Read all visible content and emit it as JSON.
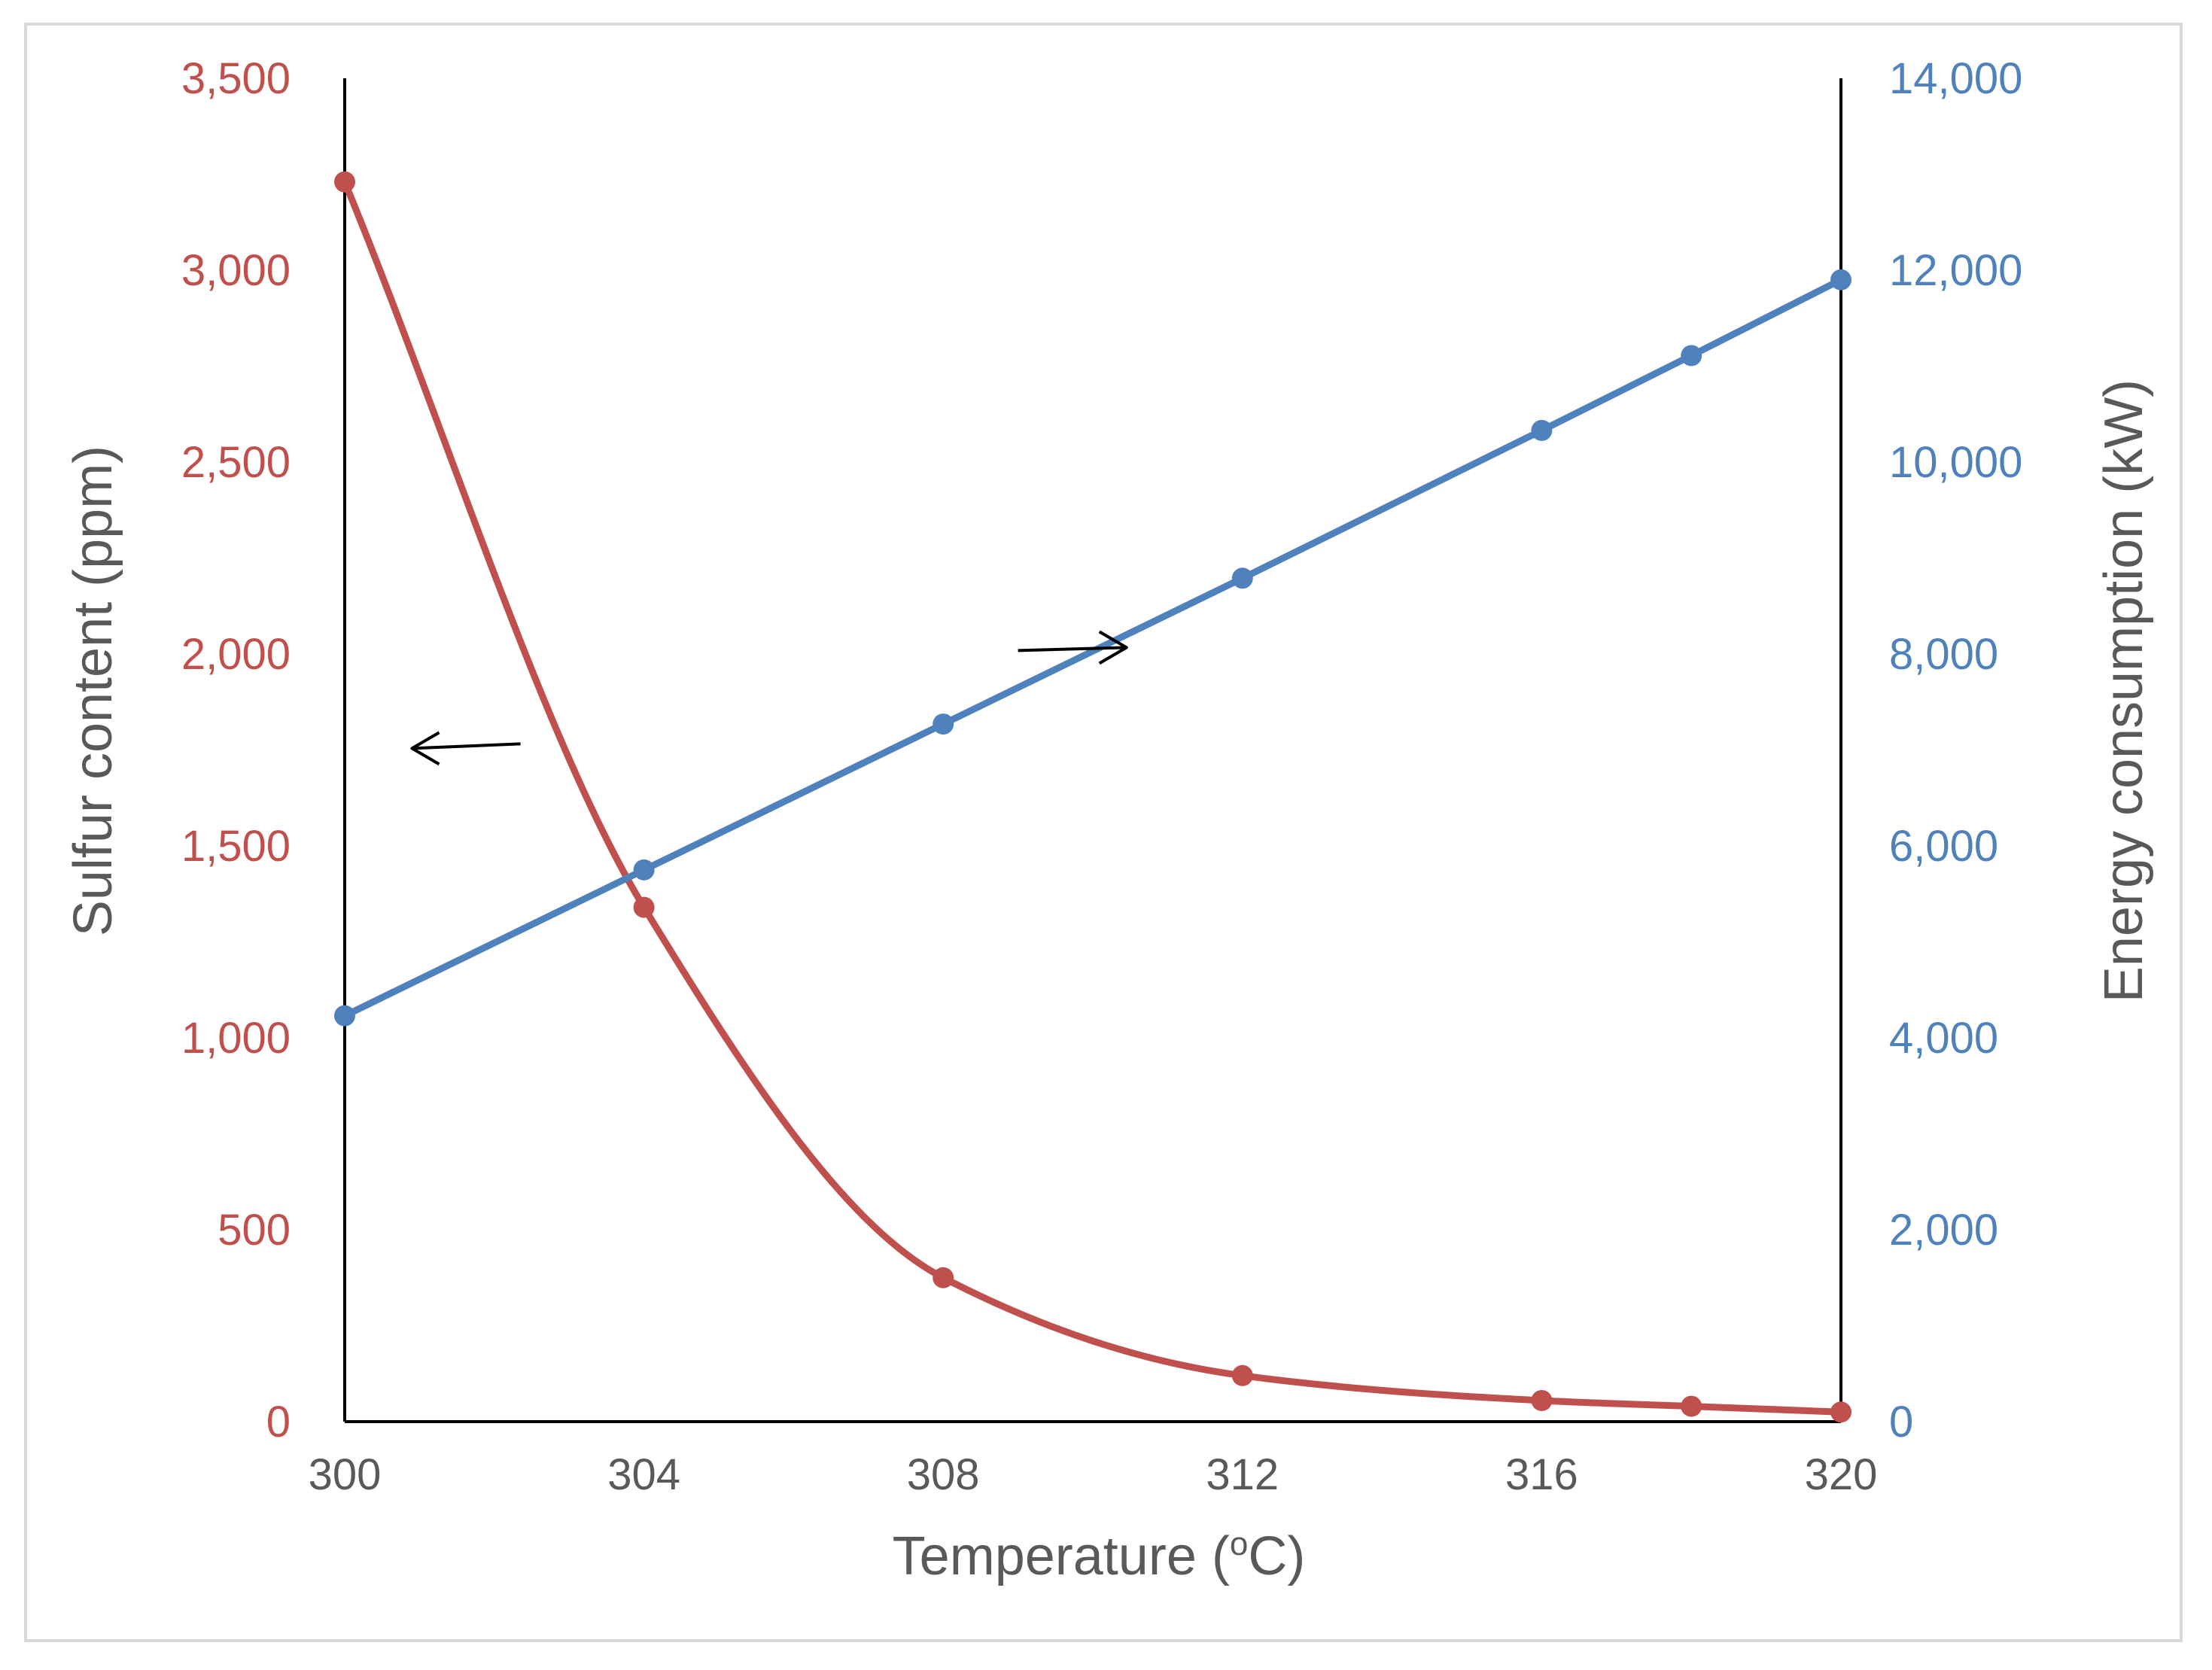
{
  "chart_data": {
    "type": "line",
    "x": [
      300,
      304,
      308,
      312,
      316,
      318,
      320
    ],
    "xlabel": {
      "prefix": "Temperature (",
      "superscript": "o",
      "suffix": "C)"
    },
    "xlim": [
      300,
      320
    ],
    "xticks": [
      "300",
      "304",
      "308",
      "312",
      "316",
      "320"
    ],
    "xtick_values": [
      300,
      304,
      308,
      312,
      316,
      320
    ],
    "y_left": {
      "label": "Sulfur content (ppm)",
      "lim": [
        0,
        3500
      ],
      "ticks": [
        "0",
        "500",
        "1,000",
        "1,500",
        "2,000",
        "2,500",
        "3,000",
        "3,500"
      ],
      "tick_values": [
        0,
        500,
        1000,
        1500,
        2000,
        2500,
        3000,
        3500
      ],
      "color": "#c0504d"
    },
    "y_right": {
      "label": "Energy consumption (kW)",
      "lim": [
        0,
        14000
      ],
      "ticks": [
        "0",
        "2,000",
        "4,000",
        "6,000",
        "8,000",
        "10,000",
        "12,000",
        "14,000"
      ],
      "tick_values": [
        0,
        2000,
        4000,
        6000,
        8000,
        10000,
        12000,
        14000
      ],
      "color": "#4f81bd"
    },
    "series": [
      {
        "name": "Sulfur content",
        "axis": "left",
        "color": "#c0504d",
        "smooth": true,
        "values": [
          3230,
          1340,
          375,
          120,
          55,
          40,
          25
        ]
      },
      {
        "name": "Energy consumption",
        "axis": "right",
        "color": "#4f81bd",
        "smooth": false,
        "values": [
          4230,
          5750,
          7270,
          8790,
          10330,
          11110,
          11900
        ]
      }
    ],
    "annotations": [
      {
        "name": "left-arrow",
        "direction": "left",
        "refers_to": "Sulfur content"
      },
      {
        "name": "right-arrow",
        "direction": "right",
        "refers_to": "Energy consumption"
      }
    ],
    "grid": false,
    "legend": "none"
  }
}
